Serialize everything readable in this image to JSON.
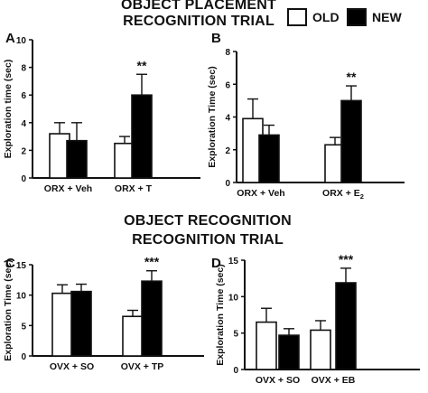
{
  "headings": {
    "top_line1": "OBJECT PLACEMENT",
    "top_line2": "RECOGNITION TRIAL",
    "bottom_line1": "OBJECT RECOGNITION",
    "bottom_line2": "RECOGNITION TRIAL"
  },
  "legend": {
    "old_label": "OLD",
    "new_label": "NEW",
    "old_color": "#ffffff",
    "new_color": "#000000"
  },
  "chart_data": [
    {
      "panel": "A",
      "type": "bar",
      "ylabel": "Exploration time (sec)",
      "ylim": [
        0,
        10
      ],
      "yticks": [
        0,
        2,
        4,
        6,
        8,
        10
      ],
      "categories": [
        "ORX + Veh",
        "ORX + T"
      ],
      "series": [
        {
          "name": "OLD",
          "values": [
            3.2,
            2.5
          ],
          "errors": [
            0.8,
            0.5
          ]
        },
        {
          "name": "NEW",
          "values": [
            2.7,
            6.0
          ],
          "errors": [
            1.3,
            1.5
          ]
        }
      ],
      "annotations": [
        {
          "text": "**",
          "category": 1,
          "series": 1
        }
      ]
    },
    {
      "panel": "B",
      "type": "bar",
      "ylabel": "Exploration Time (sec)",
      "ylim": [
        0,
        8
      ],
      "yticks": [
        0,
        2,
        4,
        6,
        8
      ],
      "categories": [
        "ORX + Veh",
        "ORX + E2"
      ],
      "category_subscripts": [
        null,
        {
          "base": "ORX + E",
          "sub": "2"
        }
      ],
      "series": [
        {
          "name": "OLD",
          "values": [
            3.9,
            2.3
          ],
          "errors": [
            1.2,
            0.45
          ]
        },
        {
          "name": "NEW",
          "values": [
            2.9,
            5.0
          ],
          "errors": [
            0.6,
            0.9
          ]
        }
      ],
      "annotations": [
        {
          "text": "**",
          "category": 1,
          "series": 1
        }
      ]
    },
    {
      "panel": "C",
      "type": "bar",
      "ylabel": "Exploration Time (sec)",
      "ylim": [
        0,
        15
      ],
      "yticks": [
        0,
        5,
        10,
        15
      ],
      "categories": [
        "OVX + SO",
        "OVX + TP"
      ],
      "series": [
        {
          "name": "OLD",
          "values": [
            10.3,
            6.5
          ],
          "errors": [
            1.4,
            1.0
          ]
        },
        {
          "name": "NEW",
          "values": [
            10.6,
            12.3
          ],
          "errors": [
            1.2,
            1.7
          ]
        }
      ],
      "annotations": [
        {
          "text": "***",
          "category": 1,
          "series": 1
        }
      ]
    },
    {
      "panel": "D",
      "type": "bar",
      "ylabel": "Exploration Time (sec)",
      "ylim": [
        0,
        15
      ],
      "yticks": [
        0,
        5,
        10,
        15
      ],
      "categories": [
        "OVX + SO",
        "OVX + EB"
      ],
      "series": [
        {
          "name": "OLD",
          "values": [
            6.5,
            5.4
          ],
          "errors": [
            1.9,
            1.3
          ]
        },
        {
          "name": "NEW",
          "values": [
            4.7,
            11.9
          ],
          "errors": [
            0.9,
            2.0
          ]
        }
      ],
      "annotations": [
        {
          "text": "***",
          "category": 1,
          "series": 1
        }
      ]
    }
  ]
}
